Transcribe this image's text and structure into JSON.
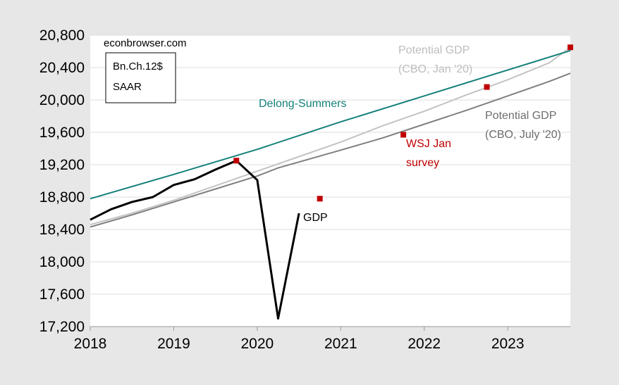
{
  "chart_data": {
    "type": "line",
    "title": "",
    "xlabel": "",
    "ylabel": "",
    "xlim": [
      2018.0,
      2023.75
    ],
    "ylim": [
      17200,
      20800
    ],
    "x_ticks": [
      "2018",
      "2019",
      "2020",
      "2021",
      "2022",
      "2023"
    ],
    "y_ticks": [
      "17,200",
      "17,600",
      "18,000",
      "18,400",
      "18,800",
      "19,200",
      "19,600",
      "20,000",
      "20,400",
      "20,800"
    ],
    "grid": "horizontal",
    "annotations": {
      "source": "econbrowser.com",
      "units_line1": "Bn.Ch.12$",
      "units_line2": "SAAR"
    },
    "series": [
      {
        "name": "GDP",
        "color": "#000000",
        "x": [
          2018.0,
          2018.25,
          2018.5,
          2018.75,
          2019.0,
          2019.25,
          2019.5,
          2019.75,
          2020.0,
          2020.25,
          2020.5
        ],
        "values": [
          18520,
          18650,
          18740,
          18800,
          18950,
          19020,
          19140,
          19250,
          19010,
          17300,
          18600
        ]
      },
      {
        "name": "Delong-Summers",
        "color": "#138079",
        "x": [
          2018.0,
          2019.0,
          2020.0,
          2021.0,
          2022.0,
          2023.0,
          2023.75
        ],
        "values": [
          18780,
          19080,
          19390,
          19730,
          20050,
          20370,
          20610
        ]
      },
      {
        "name": "Potential GDP\n(CBO, Jan '20)",
        "color": "#c3c3c3",
        "x": [
          2018.0,
          2018.5,
          2019.0,
          2019.5,
          2020.0,
          2020.5,
          2021.0,
          2021.5,
          2022.0,
          2022.5,
          2023.0,
          2023.5,
          2023.75
        ],
        "values": [
          18460,
          18600,
          18760,
          18940,
          19120,
          19300,
          19480,
          19680,
          19860,
          20060,
          20250,
          20460,
          20650
        ]
      },
      {
        "name": "Potential GDP\n(CBO, July '20)",
        "color": "#7f7f7f",
        "x": [
          2018.0,
          2018.5,
          2019.0,
          2019.5,
          2020.0,
          2020.25,
          2021.0,
          2021.5,
          2022.0,
          2022.5,
          2023.0,
          2023.5,
          2023.75
        ],
        "values": [
          18430,
          18580,
          18740,
          18900,
          19060,
          19160,
          19380,
          19530,
          19700,
          19870,
          20050,
          20230,
          20330
        ]
      },
      {
        "name": "WSJ Jan\nsurvey",
        "color": "#c00000",
        "marker": "square",
        "x": [
          2019.75,
          2020.75,
          2021.75,
          2022.75,
          2023.75
        ],
        "values": [
          19250,
          18780,
          19570,
          20160,
          20650
        ]
      }
    ]
  }
}
